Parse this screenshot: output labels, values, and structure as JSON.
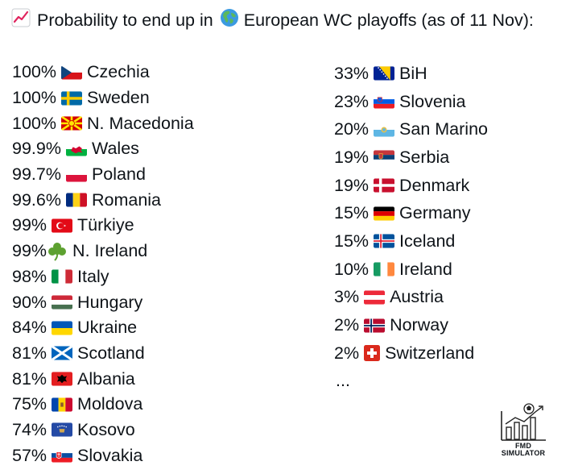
{
  "header": {
    "title_part1": "Probability to end up in",
    "title_part2": "European WC playoffs (as of 11 Nov):",
    "chart_icon": "chart-increasing-icon",
    "globe_icon": "globe-europe-africa-icon"
  },
  "left_list": [
    {
      "pct": "100%",
      "country": "Czechia",
      "flag": "cz"
    },
    {
      "pct": "100%",
      "country": "Sweden",
      "flag": "se"
    },
    {
      "pct": "100%",
      "country": "N. Macedonia",
      "flag": "mk"
    },
    {
      "pct": "99.9%",
      "country": "Wales",
      "flag": "wales"
    },
    {
      "pct": "99.7%",
      "country": "Poland",
      "flag": "pl"
    },
    {
      "pct": "99.6%",
      "country": "Romania",
      "flag": "ro"
    },
    {
      "pct": "99%",
      "country": "Türkiye",
      "flag": "tr"
    },
    {
      "pct": "99%",
      "country": "N. Ireland",
      "flag": "shamrock"
    },
    {
      "pct": "98%",
      "country": "Italy",
      "flag": "it"
    },
    {
      "pct": "90%",
      "country": "Hungary",
      "flag": "hu"
    },
    {
      "pct": "84%",
      "country": "Ukraine",
      "flag": "ua"
    },
    {
      "pct": "81%",
      "country": "Scotland",
      "flag": "scotland"
    },
    {
      "pct": "81%",
      "country": "Albania",
      "flag": "al"
    },
    {
      "pct": "75%",
      "country": "Moldova",
      "flag": "md"
    },
    {
      "pct": "74%",
      "country": "Kosovo",
      "flag": "xk"
    },
    {
      "pct": "57%",
      "country": "Slovakia",
      "flag": "sk"
    }
  ],
  "right_list": [
    {
      "pct": "33%",
      "country": "BiH",
      "flag": "ba"
    },
    {
      "pct": "23%",
      "country": "Slovenia",
      "flag": "si"
    },
    {
      "pct": "20%",
      "country": "San Marino",
      "flag": "sm"
    },
    {
      "pct": "19%",
      "country": "Serbia",
      "flag": "rs"
    },
    {
      "pct": "19%",
      "country": "Denmark",
      "flag": "dk"
    },
    {
      "pct": "15%",
      "country": "Germany",
      "flag": "de"
    },
    {
      "pct": "15%",
      "country": "Iceland",
      "flag": "is"
    },
    {
      "pct": "10%",
      "country": "Ireland",
      "flag": "ie"
    },
    {
      "pct": "3%",
      "country": "Austria",
      "flag": "at"
    },
    {
      "pct": "2%",
      "country": "Norway",
      "flag": "no"
    },
    {
      "pct": "2%",
      "country": "Switzerland",
      "flag": "ch"
    }
  ],
  "ellipsis": "...",
  "logo": {
    "line1": "FMD",
    "line2": "SIMULATOR"
  }
}
